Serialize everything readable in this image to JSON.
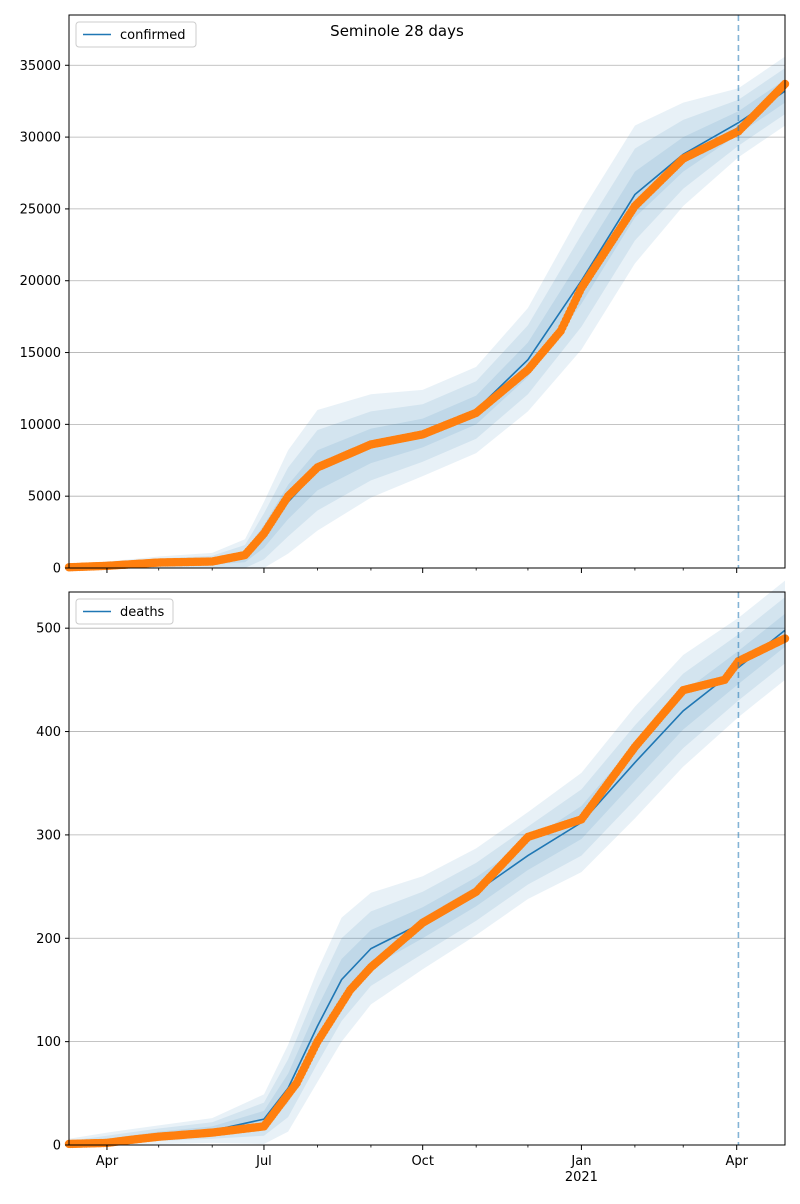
{
  "figure": {
    "title": "Seminole 28 days"
  },
  "colors": {
    "model_line": "#1f77b4",
    "observed": "#ff7f0e",
    "band": "#1f77b4",
    "forecast_line": "#1f77b4",
    "grid": "#b0b0b0"
  },
  "x_axis": {
    "start": "2020-03-10",
    "end": "2021-04-29",
    "forecast_start": "2021-04-02",
    "ticks": [
      {
        "date": "2020-04-01",
        "label": "Apr",
        "sublabel": ""
      },
      {
        "date": "2020-07-01",
        "label": "Jul",
        "sublabel": ""
      },
      {
        "date": "2020-10-01",
        "label": "Oct",
        "sublabel": ""
      },
      {
        "date": "2021-01-01",
        "label": "Jan",
        "sublabel": "2021"
      },
      {
        "date": "2021-04-01",
        "label": "Apr",
        "sublabel": ""
      }
    ],
    "minor_ticks": [
      "2020-05-01",
      "2020-06-01",
      "2020-08-01",
      "2020-09-01",
      "2020-11-01",
      "2020-12-01",
      "2021-02-01",
      "2021-03-01"
    ]
  },
  "chart_data": [
    {
      "type": "line",
      "legend": "confirmed",
      "legend_position": "top-left",
      "grid": true,
      "ylim": [
        0,
        38500
      ],
      "yticks": [
        0,
        5000,
        10000,
        15000,
        20000,
        25000,
        30000,
        35000
      ],
      "model": {
        "dates": [
          "2020-03-10",
          "2020-04-01",
          "2020-05-01",
          "2020-06-01",
          "2020-06-20",
          "2020-07-01",
          "2020-07-15",
          "2020-08-01",
          "2020-09-01",
          "2020-10-01",
          "2020-11-01",
          "2020-12-01",
          "2021-01-01",
          "2021-02-01",
          "2021-03-01",
          "2021-04-02",
          "2021-04-29"
        ],
        "values": [
          50,
          150,
          350,
          450,
          800,
          2200,
          4600,
          6800,
          8500,
          9400,
          11000,
          14500,
          20000,
          26000,
          28800,
          31000,
          33200
        ]
      },
      "band_half_widths": [
        [
          0,
          100,
          150,
          200,
          400,
          800,
          1200,
          1400,
          1200,
          1000,
          1000,
          1200,
          1600,
          1600,
          1200,
          800,
          800
        ],
        [
          0,
          200,
          300,
          400,
          800,
          1600,
          2400,
          2800,
          2400,
          2000,
          2000,
          2400,
          3200,
          3200,
          2400,
          1600,
          1600
        ],
        [
          0,
          300,
          450,
          600,
          1200,
          2400,
          3600,
          4200,
          3600,
          3000,
          3000,
          3600,
          4800,
          4800,
          3600,
          2400,
          2400
        ]
      ],
      "observed": {
        "dates": [
          "2020-03-10",
          "2020-04-01",
          "2020-05-01",
          "2020-06-01",
          "2020-06-20",
          "2020-07-01",
          "2020-07-15",
          "2020-08-01",
          "2020-09-01",
          "2020-10-01",
          "2020-11-01",
          "2020-12-01",
          "2020-12-20",
          "2021-01-01",
          "2021-02-01",
          "2021-03-01",
          "2021-04-02",
          "2021-04-29"
        ],
        "values": [
          50,
          150,
          380,
          450,
          900,
          2400,
          5000,
          7000,
          8600,
          9300,
          10800,
          13800,
          16500,
          19500,
          25200,
          28500,
          30400,
          33700
        ]
      }
    },
    {
      "type": "line",
      "legend": "deaths",
      "legend_position": "top-left",
      "grid": true,
      "ylim": [
        0,
        535
      ],
      "yticks": [
        0,
        100,
        200,
        300,
        400,
        500
      ],
      "model": {
        "dates": [
          "2020-03-10",
          "2020-04-01",
          "2020-05-01",
          "2020-06-01",
          "2020-07-01",
          "2020-07-15",
          "2020-08-01",
          "2020-08-15",
          "2020-09-01",
          "2020-10-01",
          "2020-11-01",
          "2020-12-01",
          "2021-01-01",
          "2021-02-01",
          "2021-03-01",
          "2021-04-02",
          "2021-04-29"
        ],
        "values": [
          0,
          3,
          10,
          14,
          25,
          55,
          115,
          160,
          190,
          215,
          245,
          280,
          312,
          370,
          420,
          462,
          498
        ]
      },
      "band_half_widths": [
        [
          2,
          3,
          3,
          4,
          8,
          14,
          18,
          20,
          18,
          15,
          14,
          14,
          16,
          18,
          18,
          16,
          16
        ],
        [
          4,
          6,
          6,
          8,
          16,
          28,
          36,
          40,
          36,
          30,
          28,
          28,
          32,
          36,
          36,
          32,
          32
        ],
        [
          6,
          9,
          9,
          12,
          24,
          42,
          54,
          60,
          54,
          45,
          42,
          42,
          48,
          54,
          54,
          48,
          48
        ]
      ],
      "observed": {
        "dates": [
          "2020-03-10",
          "2020-04-01",
          "2020-04-15",
          "2020-05-01",
          "2020-06-01",
          "2020-07-01",
          "2020-07-20",
          "2020-08-01",
          "2020-08-20",
          "2020-09-01",
          "2020-10-01",
          "2020-11-01",
          "2020-12-01",
          "2021-01-01",
          "2021-02-01",
          "2021-03-01",
          "2021-03-25",
          "2021-04-02",
          "2021-04-29"
        ],
        "values": [
          1,
          2,
          5,
          8,
          12,
          18,
          60,
          100,
          150,
          172,
          215,
          245,
          298,
          315,
          385,
          440,
          450,
          468,
          490
        ]
      }
    }
  ]
}
